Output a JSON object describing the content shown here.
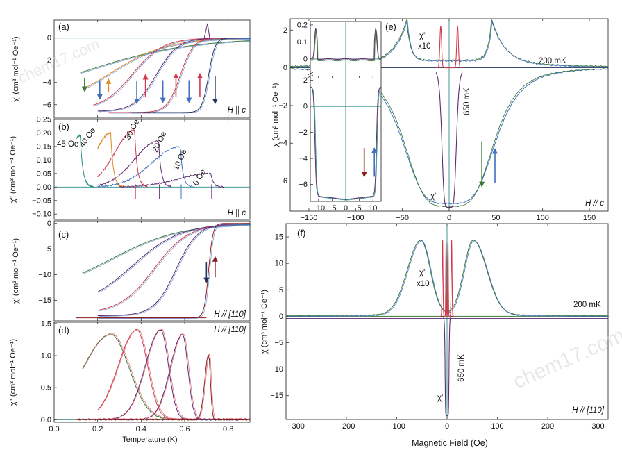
{
  "figure": {
    "watermark": "chem17.com",
    "shared_xlabel_left": "Temperature (K)",
    "shared_xlabel_right": "Magnetic Field (Oe)",
    "colors": {
      "purple": "#5e2a6e",
      "red": "#d23a4a",
      "navy": "#23305a",
      "blue": "#3f6fc0",
      "orange": "#e08a26",
      "green": "#3f7a3a",
      "teal": "#2a8c86",
      "darkred": "#8a1c1c"
    }
  },
  "chart_data": [
    {
      "id": "a",
      "panel_label": "(a)",
      "type": "line",
      "xlim": [
        0.0,
        0.9
      ],
      "ylim": [
        -7.2,
        1.6
      ],
      "xticks": [],
      "yticks": [
        0,
        -2,
        -4,
        -6
      ],
      "ytick_labels": [
        "0",
        "−2",
        "−4",
        "−6"
      ],
      "ylabel": "χ' (cm³ mol⁻¹ Oe⁻¹)",
      "condition": "H || c",
      "series": [
        {
          "name": "45 Oe",
          "color": "#3f7a3a",
          "transition": 0.14,
          "width": 0.24,
          "min": -6.0,
          "start": 0.12
        },
        {
          "name": "40 Oe",
          "color": "#e08a26",
          "transition": 0.26,
          "width": 0.13,
          "min": -6.3,
          "start": 0.15
        },
        {
          "name": "30 Oe",
          "color": "#d23a4a",
          "transition": 0.36,
          "width": 0.07,
          "min": -6.5,
          "start": 0.18
        },
        {
          "name": "20 Oe",
          "color": "#5e2a6e",
          "transition": 0.47,
          "width": 0.05,
          "min": -6.6,
          "start": 0.2
        },
        {
          "name": "10 Oe",
          "color": "#d23a4a",
          "transition": 0.58,
          "width": 0.03,
          "min": -6.7,
          "start": 0.25
        },
        {
          "name": "0 Oe",
          "color": "#23305a",
          "transition": 0.71,
          "width": 0.015,
          "min": -6.7,
          "start": 0.35
        }
      ],
      "arrows": [
        {
          "x": 0.14,
          "y1": -3.6,
          "y2": -4.8,
          "color": "#3f7a3a",
          "dir": "down"
        },
        {
          "x": 0.21,
          "y1": -3.8,
          "y2": -5.5,
          "color": "#3f6fc0",
          "dir": "down"
        },
        {
          "x": 0.25,
          "y1": -3.7,
          "y2": -4.9,
          "color": "#e08a26",
          "dir": "up"
        },
        {
          "x": 0.38,
          "y1": -3.9,
          "y2": -5.9,
          "color": "#3f6fc0",
          "dir": "down"
        },
        {
          "x": 0.42,
          "y1": -3.3,
          "y2": -5.3,
          "color": "#d23a4a",
          "dir": "up"
        },
        {
          "x": 0.5,
          "y1": -3.8,
          "y2": -5.8,
          "color": "#3f6fc0",
          "dir": "down"
        },
        {
          "x": 0.56,
          "y1": -3.2,
          "y2": -5.3,
          "color": "#d23a4a",
          "dir": "up"
        },
        {
          "x": 0.62,
          "y1": -3.8,
          "y2": -5.8,
          "color": "#3f6fc0",
          "dir": "down"
        },
        {
          "x": 0.67,
          "y1": -3.2,
          "y2": -5.3,
          "color": "#d23a4a",
          "dir": "up"
        },
        {
          "x": 0.74,
          "y1": -3.4,
          "y2": -5.9,
          "color": "#23305a",
          "dir": "down"
        }
      ]
    },
    {
      "id": "b",
      "panel_label": "(b)",
      "type": "line",
      "xlim": [
        0.0,
        0.9
      ],
      "ylim": [
        -0.12,
        0.25
      ],
      "xticks": [],
      "yticks": [
        0.25,
        0.2,
        0.15,
        0.1,
        0.05,
        0.0,
        -0.05,
        -0.1
      ],
      "ytick_labels": [
        "0.25",
        "0.20",
        "0.15",
        "0.10",
        "0.05",
        "0.00",
        "−0.05",
        "−0.10"
      ],
      "ylabel": "χ'' (cm³ mol⁻¹ Oe⁻¹)",
      "condition": "H || c",
      "field_labels": [
        "45 Oe",
        "40 Oe",
        "30 Oe",
        "20 Oe",
        "10 Oe",
        "0 Oe"
      ],
      "series": [
        {
          "name": "45 Oe",
          "color": "#2a8c86",
          "peak_x": 0.12,
          "peak_y": 0.19,
          "start": 0.1,
          "end": 0.9
        },
        {
          "name": "40 Oe",
          "color": "#e08a26",
          "peak_x": 0.26,
          "peak_y": 0.2,
          "start": 0.2,
          "end": 0.9
        },
        {
          "name": "30 Oe",
          "color": "#d23a4a",
          "peak_x": 0.37,
          "peak_y": 0.21,
          "start": 0.2,
          "end": 0.9
        },
        {
          "name": "20 Oe",
          "color": "#5e2a6e",
          "peak_x": 0.48,
          "peak_y": 0.17,
          "start": 0.2,
          "end": 0.9
        },
        {
          "name": "10 Oe",
          "color": "#3f6fc0",
          "peak_x": 0.58,
          "peak_y": 0.15,
          "start": 0.2,
          "end": 0.9
        },
        {
          "name": "0 Oe",
          "color": "#5e2a6e",
          "peak_x": 0.72,
          "peak_y": 0.05,
          "start": 0.3,
          "end": 0.9
        }
      ]
    },
    {
      "id": "c",
      "panel_label": "(c)",
      "type": "line",
      "xlim": [
        0.0,
        0.9
      ],
      "ylim": [
        -19,
        0.5
      ],
      "xticks": [],
      "yticks": [
        0,
        -5,
        -10,
        -15
      ],
      "ytick_labels": [
        "0",
        "−5",
        "−10",
        "−15"
      ],
      "ylabel": "χ' (cm³ mol⁻¹ Oe⁻¹)",
      "condition": "H // [110]",
      "series": [
        {
          "name": "c1",
          "color": "#3f7a3a",
          "transition": 0.26,
          "width": 0.16,
          "min": -14,
          "start": 0.13
        },
        {
          "name": "c2",
          "color": "#5e2a6e",
          "transition": 0.36,
          "width": 0.11,
          "min": -16.5,
          "start": 0.2
        },
        {
          "name": "c3",
          "color": "#d23a4a",
          "transition": 0.46,
          "width": 0.08,
          "min": -17.6,
          "start": 0.2
        },
        {
          "name": "c4",
          "color": "#5e2a6e",
          "transition": 0.56,
          "width": 0.05,
          "min": -18.0,
          "start": 0.2
        },
        {
          "name": "c5",
          "color": "#8a1c1c",
          "transition": 0.71,
          "width": 0.01,
          "min": -18.4,
          "start": 0.2
        }
      ],
      "arrows": [
        {
          "x": 0.7,
          "y1": -7.5,
          "y2": -11.5,
          "color": "#23305a",
          "dir": "down"
        },
        {
          "x": 0.74,
          "y1": -6.5,
          "y2": -10.5,
          "color": "#8a1c1c",
          "dir": "up"
        }
      ]
    },
    {
      "id": "d",
      "panel_label": "(d)",
      "type": "line",
      "xlim": [
        0.0,
        0.9
      ],
      "ylim": [
        -0.04,
        1.52
      ],
      "xticks": [
        0.0,
        0.2,
        0.4,
        0.6,
        0.8
      ],
      "xtick_labels": [
        "0.0",
        "0.2",
        "0.4",
        "0.6",
        "0.8"
      ],
      "yticks": [
        0,
        0.5,
        1.0,
        1.5
      ],
      "ytick_labels": [
        "0.0",
        "0.5",
        "1.0",
        "1.5"
      ],
      "ylabel": "χ'' (cm³ mol⁻¹ Oe⁻¹)",
      "xlabel": "Temperature (K)",
      "condition": "H // [110]",
      "series": [
        {
          "name": "d1",
          "color": "#3f7a3a",
          "peak_x": 0.26,
          "peak_y": 1.33,
          "wl": 0.18,
          "wr": 0.12,
          "start": 0.13
        },
        {
          "name": "d2",
          "color": "#d23a4a",
          "peak_x": 0.38,
          "peak_y": 1.4,
          "wl": 0.12,
          "wr": 0.07,
          "start": 0.2
        },
        {
          "name": "d3",
          "color": "#5e2a6e",
          "peak_x": 0.49,
          "peak_y": 1.4,
          "wl": 0.1,
          "wr": 0.05,
          "start": 0.2
        },
        {
          "name": "d4",
          "color": "#5e2a6e",
          "peak_x": 0.59,
          "peak_y": 1.33,
          "wl": 0.08,
          "wr": 0.035,
          "start": 0.2
        },
        {
          "name": "d5",
          "color": "#8a1c1c",
          "peak_x": 0.71,
          "peak_y": 1.02,
          "wl": 0.025,
          "wr": 0.012,
          "start": 0.1
        }
      ]
    },
    {
      "id": "e",
      "panel_label": "(e)",
      "type": "line",
      "xlim": [
        -170,
        170
      ],
      "ylim": [
        -7.6,
        2.6
      ],
      "xticks": [
        -150,
        -100,
        -50,
        0,
        50,
        100,
        150
      ],
      "xtick_labels": [
        "−150",
        "−100",
        "−50",
        "0",
        "50",
        "100",
        "150"
      ],
      "yticks": [
        2,
        0,
        -2,
        -4,
        -6
      ],
      "ytick_labels": [
        "2",
        "0",
        "−2",
        "−4",
        "−6"
      ],
      "ylabel": "χ (cm³ mol⁻¹ Oe⁻¹)",
      "condition": "H // c",
      "labels": {
        "chi_dd": "χ''",
        "x10": "x10",
        "mk200": "200 mK",
        "mk650": "650 mK",
        "chi_d": "χ'"
      },
      "series": [
        {
          "name": "χ' 200 mK",
          "color": "#3f6fc0",
          "min": -7.2,
          "width": 52
        },
        {
          "name": "χ'' x10 200 mK",
          "color": "#3f7a3a",
          "peak_x": 45,
          "peak_y": 2.3
        },
        {
          "name": "χ' 650 mK",
          "color": "#5e2a6e",
          "min": -7.4,
          "width": 8
        },
        {
          "name": "χ'' 650 mK",
          "color": "#d23a4a",
          "peak_x": 9,
          "peak_y": 2.2
        }
      ],
      "arrows": [
        {
          "x": 35,
          "y1": -3.9,
          "y2": -6.3,
          "color": "#3f7a3a",
          "dir": "down"
        },
        {
          "x": 49,
          "y1": -4.3,
          "y2": -6.1,
          "color": "#3f6fc0",
          "dir": "up"
        }
      ]
    },
    {
      "id": "e_inset",
      "panel_label": "",
      "type": "line",
      "xlim": [
        -13,
        13
      ],
      "ylim_top": [
        -0.09,
        0.22
      ],
      "ylim_bottom": [
        -7.3,
        2.3
      ],
      "xticks": [
        -10,
        -5,
        0,
        5,
        10
      ],
      "xtick_labels": [
        "−10",
        "−5",
        "0",
        "5",
        "10"
      ],
      "yticks_top": [
        0.2,
        0.1,
        0.0
      ],
      "ytick_labels_top": [
        "0.2",
        "0.1",
        "0"
      ],
      "yticks_bottom": [
        2,
        0,
        -2,
        -4,
        -6
      ],
      "ytick_labels_bottom": [
        "2",
        "0",
        "−2",
        "−4",
        "−6"
      ],
      "arrows": [
        {
          "x": 6.8,
          "y1": -3.2,
          "y2": -5.4,
          "color": "#8a1c1c",
          "dir": "down"
        },
        {
          "x": 10.5,
          "y1": -3.2,
          "y2": -5.4,
          "color": "#3f6fc0",
          "dir": "up"
        }
      ]
    },
    {
      "id": "f",
      "panel_label": "(f)",
      "type": "line",
      "xlim": [
        -320,
        320
      ],
      "ylim": [
        -19.5,
        17.5
      ],
      "xticks": [
        -300,
        -200,
        -100,
        0,
        100,
        200,
        300
      ],
      "xtick_labels": [
        "−300",
        "−200",
        "−100",
        "0",
        "100",
        "200",
        "300"
      ],
      "yticks": [
        15,
        10,
        5,
        0,
        -5,
        -10,
        -15
      ],
      "ytick_labels": [
        "15",
        "10",
        "5",
        "0",
        "−5",
        "−10",
        "−15"
      ],
      "ylabel": "χ (cm³ mol⁻¹ Oe⁻¹)",
      "xlabel": "Magnetic Field (Oe)",
      "condition": "H // [110]",
      "labels": {
        "chi_dd": "χ''",
        "x10": "x10",
        "mk200": "200 mK",
        "mk650": "650 mK",
        "chi_d": "χ'"
      },
      "series": [
        {
          "name": "χ' 200 mK",
          "color": "#3f6fc0",
          "min": -18.5,
          "width": 55
        },
        {
          "name": "χ'' x10 200 mK",
          "color": "#3f7a3a",
          "peak_x": 52,
          "peak_y": 14
        },
        {
          "name": "χ' 650 mK",
          "color": "#5e2a6e",
          "min": -18.8,
          "width": 4
        },
        {
          "name": "χ'' 650 mK",
          "color": "#d23a4a",
          "peak_x": 9,
          "peak_y": 14.5
        }
      ]
    }
  ]
}
